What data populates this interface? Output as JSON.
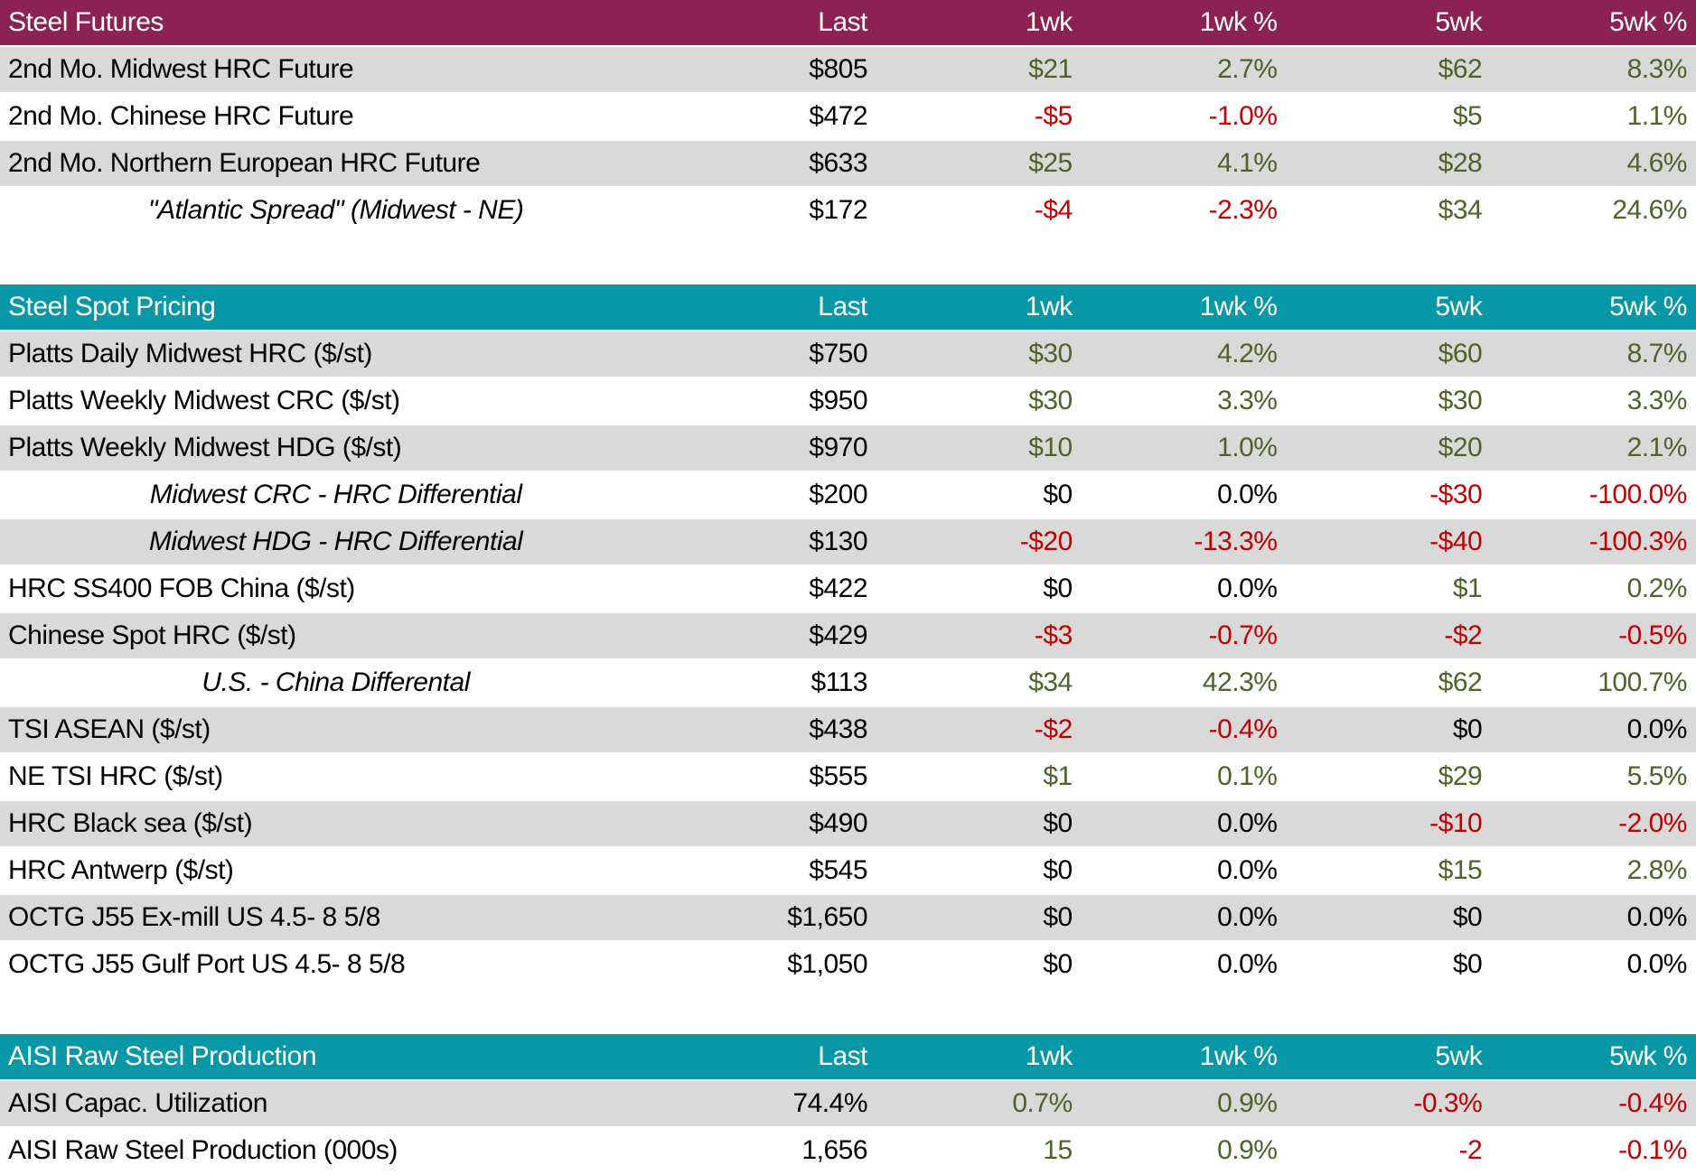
{
  "colors": {
    "maroon_header_bg": "#8b2352",
    "teal_header_bg": "#0897a6",
    "row_gray_bg": "#d9d9d9",
    "row_white_bg": "#ffffff",
    "positive_text": "#4f6228",
    "negative_text": "#c00000",
    "neutral_text": "#000000",
    "header_text": "#ffffff"
  },
  "table": {
    "columns": [
      "Last",
      "1wk",
      "1wk %",
      "5wk",
      "5wk %"
    ],
    "sections": [
      {
        "title": "Steel Futures",
        "theme": "maroon",
        "gap_after": 55,
        "rows": [
          {
            "label": "2nd Mo. Midwest HRC Future",
            "italic": false,
            "last": "$805",
            "changes": [
              {
                "text": "$21",
                "tone": "pos"
              },
              {
                "text": "2.7%",
                "tone": "pos"
              },
              {
                "text": "$62",
                "tone": "pos"
              },
              {
                "text": "8.3%",
                "tone": "pos"
              }
            ]
          },
          {
            "label": "2nd Mo. Chinese HRC Future",
            "italic": false,
            "last": "$472",
            "changes": [
              {
                "text": "-$5",
                "tone": "neg"
              },
              {
                "text": "-1.0%",
                "tone": "neg"
              },
              {
                "text": "$5",
                "tone": "pos"
              },
              {
                "text": "1.1%",
                "tone": "pos"
              }
            ]
          },
          {
            "label": "2nd Mo. Northern European HRC Future",
            "italic": false,
            "last": "$633",
            "changes": [
              {
                "text": "$25",
                "tone": "pos"
              },
              {
                "text": "4.1%",
                "tone": "pos"
              },
              {
                "text": "$28",
                "tone": "pos"
              },
              {
                "text": "4.6%",
                "tone": "pos"
              }
            ]
          },
          {
            "label": "\"Atlantic Spread\" (Midwest - NE)",
            "italic": true,
            "last": "$172",
            "changes": [
              {
                "text": "-$4",
                "tone": "neg"
              },
              {
                "text": "-2.3%",
                "tone": "neg"
              },
              {
                "text": "$34",
                "tone": "pos"
              },
              {
                "text": "24.6%",
                "tone": "pos"
              }
            ]
          }
        ]
      },
      {
        "title": "Steel Spot Pricing",
        "theme": "teal",
        "gap_after": 50,
        "rows": [
          {
            "label": "Platts Daily Midwest HRC ($/st)",
            "italic": false,
            "last": "$750",
            "changes": [
              {
                "text": "$30",
                "tone": "pos"
              },
              {
                "text": "4.2%",
                "tone": "pos"
              },
              {
                "text": "$60",
                "tone": "pos"
              },
              {
                "text": "8.7%",
                "tone": "pos"
              }
            ]
          },
          {
            "label": "Platts Weekly Midwest CRC ($/st)",
            "italic": false,
            "last": "$950",
            "changes": [
              {
                "text": "$30",
                "tone": "pos"
              },
              {
                "text": "3.3%",
                "tone": "pos"
              },
              {
                "text": "$30",
                "tone": "pos"
              },
              {
                "text": "3.3%",
                "tone": "pos"
              }
            ]
          },
          {
            "label": "Platts Weekly Midwest HDG ($/st)",
            "italic": false,
            "last": "$970",
            "changes": [
              {
                "text": "$10",
                "tone": "pos"
              },
              {
                "text": "1.0%",
                "tone": "pos"
              },
              {
                "text": "$20",
                "tone": "pos"
              },
              {
                "text": "2.1%",
                "tone": "pos"
              }
            ]
          },
          {
            "label": "Midwest CRC - HRC Differential",
            "italic": true,
            "last": "$200",
            "changes": [
              {
                "text": "$0",
                "tone": "neu"
              },
              {
                "text": "0.0%",
                "tone": "neu"
              },
              {
                "text": "-$30",
                "tone": "neg"
              },
              {
                "text": "-100.0%",
                "tone": "neg"
              }
            ]
          },
          {
            "label": "Midwest HDG - HRC Differential",
            "italic": true,
            "last": "$130",
            "changes": [
              {
                "text": "-$20",
                "tone": "neg"
              },
              {
                "text": "-13.3%",
                "tone": "neg"
              },
              {
                "text": "-$40",
                "tone": "neg"
              },
              {
                "text": "-100.3%",
                "tone": "neg"
              }
            ]
          },
          {
            "label": "HRC SS400 FOB China ($/st)",
            "italic": false,
            "last": "$422",
            "changes": [
              {
                "text": "$0",
                "tone": "neu"
              },
              {
                "text": "0.0%",
                "tone": "neu"
              },
              {
                "text": "$1",
                "tone": "pos"
              },
              {
                "text": "0.2%",
                "tone": "pos"
              }
            ]
          },
          {
            "label": "Chinese Spot HRC ($/st)",
            "italic": false,
            "last": "$429",
            "changes": [
              {
                "text": "-$3",
                "tone": "neg"
              },
              {
                "text": "-0.7%",
                "tone": "neg"
              },
              {
                "text": "-$2",
                "tone": "neg"
              },
              {
                "text": "-0.5%",
                "tone": "neg"
              }
            ]
          },
          {
            "label": "U.S. - China Differental",
            "italic": true,
            "last": "$113",
            "changes": [
              {
                "text": "$34",
                "tone": "pos"
              },
              {
                "text": "42.3%",
                "tone": "pos"
              },
              {
                "text": "$62",
                "tone": "pos"
              },
              {
                "text": "100.7%",
                "tone": "pos"
              }
            ]
          },
          {
            "label": "TSI ASEAN ($/st)",
            "italic": false,
            "last": "$438",
            "changes": [
              {
                "text": "-$2",
                "tone": "neg"
              },
              {
                "text": "-0.4%",
                "tone": "neg"
              },
              {
                "text": "$0",
                "tone": "neu"
              },
              {
                "text": "0.0%",
                "tone": "neu"
              }
            ]
          },
          {
            "label": "NE TSI HRC ($/st)",
            "italic": false,
            "last": "$555",
            "changes": [
              {
                "text": "$1",
                "tone": "pos"
              },
              {
                "text": "0.1%",
                "tone": "pos"
              },
              {
                "text": "$29",
                "tone": "pos"
              },
              {
                "text": "5.5%",
                "tone": "pos"
              }
            ]
          },
          {
            "label": "HRC Black sea ($/st)",
            "italic": false,
            "last": "$490",
            "changes": [
              {
                "text": "$0",
                "tone": "neu"
              },
              {
                "text": "0.0%",
                "tone": "neu"
              },
              {
                "text": "-$10",
                "tone": "neg"
              },
              {
                "text": "-2.0%",
                "tone": "neg"
              }
            ]
          },
          {
            "label": "HRC Antwerp ($/st)",
            "italic": false,
            "last": "$545",
            "changes": [
              {
                "text": "$0",
                "tone": "neu"
              },
              {
                "text": "0.0%",
                "tone": "neu"
              },
              {
                "text": "$15",
                "tone": "pos"
              },
              {
                "text": "2.8%",
                "tone": "pos"
              }
            ]
          },
          {
            "label": "OCTG J55 Ex-mill US 4.5- 8 5/8",
            "italic": false,
            "last": "$1,650",
            "changes": [
              {
                "text": "$0",
                "tone": "neu"
              },
              {
                "text": "0.0%",
                "tone": "neu"
              },
              {
                "text": "$0",
                "tone": "neu"
              },
              {
                "text": "0.0%",
                "tone": "neu"
              }
            ]
          },
          {
            "label": "OCTG J55 Gulf Port US 4.5- 8 5/8",
            "italic": false,
            "last": "$1,050",
            "changes": [
              {
                "text": "$0",
                "tone": "neu"
              },
              {
                "text": "0.0%",
                "tone": "neu"
              },
              {
                "text": "$0",
                "tone": "neu"
              },
              {
                "text": "0.0%",
                "tone": "neu"
              }
            ]
          }
        ]
      },
      {
        "title": "AISI Raw Steel Production",
        "theme": "teal",
        "gap_after": 0,
        "rows": [
          {
            "label": "AISI Capac. Utilization",
            "italic": false,
            "last": "74.4%",
            "changes": [
              {
                "text": "0.7%",
                "tone": "pos"
              },
              {
                "text": "0.9%",
                "tone": "pos"
              },
              {
                "text": "-0.3%",
                "tone": "neg"
              },
              {
                "text": "-0.4%",
                "tone": "neg"
              }
            ]
          },
          {
            "label": "AISI Raw Steel Production (000s)",
            "italic": false,
            "last": "1,656",
            "changes": [
              {
                "text": "15",
                "tone": "pos"
              },
              {
                "text": "0.9%",
                "tone": "pos"
              },
              {
                "text": "-2",
                "tone": "neg"
              },
              {
                "text": "-0.1%",
                "tone": "neg"
              }
            ]
          }
        ]
      }
    ]
  },
  "chart_data": [
    {
      "type": "table",
      "title": "Steel Futures",
      "columns": [
        "",
        "Last",
        "1wk",
        "1wk %",
        "5wk",
        "5wk %"
      ],
      "rows": [
        [
          "2nd Mo. Midwest HRC Future",
          "$805",
          "$21",
          "2.7%",
          "$62",
          "8.3%"
        ],
        [
          "2nd Mo. Chinese HRC Future",
          "$472",
          "-$5",
          "-1.0%",
          "$5",
          "1.1%"
        ],
        [
          "2nd Mo. Northern European HRC Future",
          "$633",
          "$25",
          "4.1%",
          "$28",
          "4.6%"
        ],
        [
          "\"Atlantic Spread\" (Midwest - NE)",
          "$172",
          "-$4",
          "-2.3%",
          "$34",
          "24.6%"
        ]
      ]
    },
    {
      "type": "table",
      "title": "Steel Spot Pricing",
      "columns": [
        "",
        "Last",
        "1wk",
        "1wk %",
        "5wk",
        "5wk %"
      ],
      "rows": [
        [
          "Platts Daily Midwest HRC ($/st)",
          "$750",
          "$30",
          "4.2%",
          "$60",
          "8.7%"
        ],
        [
          "Platts Weekly Midwest CRC ($/st)",
          "$950",
          "$30",
          "3.3%",
          "$30",
          "3.3%"
        ],
        [
          "Platts Weekly Midwest HDG ($/st)",
          "$970",
          "$10",
          "1.0%",
          "$20",
          "2.1%"
        ],
        [
          "Midwest CRC - HRC Differential",
          "$200",
          "$0",
          "0.0%",
          "-$30",
          "-100.0%"
        ],
        [
          "Midwest HDG - HRC Differential",
          "$130",
          "-$20",
          "-13.3%",
          "-$40",
          "-100.3%"
        ],
        [
          "HRC SS400 FOB China ($/st)",
          "$422",
          "$0",
          "0.0%",
          "$1",
          "0.2%"
        ],
        [
          "Chinese Spot HRC ($/st)",
          "$429",
          "-$3",
          "-0.7%",
          "-$2",
          "-0.5%"
        ],
        [
          "U.S. - China Differental",
          "$113",
          "$34",
          "42.3%",
          "$62",
          "100.7%"
        ],
        [
          "TSI ASEAN ($/st)",
          "$438",
          "-$2",
          "-0.4%",
          "$0",
          "0.0%"
        ],
        [
          "NE TSI HRC ($/st)",
          "$555",
          "$1",
          "0.1%",
          "$29",
          "5.5%"
        ],
        [
          "HRC Black sea ($/st)",
          "$490",
          "$0",
          "0.0%",
          "-$10",
          "-2.0%"
        ],
        [
          "HRC Antwerp ($/st)",
          "$545",
          "$0",
          "0.0%",
          "$15",
          "2.8%"
        ],
        [
          "OCTG J55 Ex-mill US 4.5- 8 5/8",
          "$1,650",
          "$0",
          "0.0%",
          "$0",
          "0.0%"
        ],
        [
          "OCTG J55 Gulf Port US 4.5- 8 5/8",
          "$1,050",
          "$0",
          "0.0%",
          "$0",
          "0.0%"
        ]
      ]
    },
    {
      "type": "table",
      "title": "AISI Raw Steel Production",
      "columns": [
        "",
        "Last",
        "1wk",
        "1wk %",
        "5wk",
        "5wk %"
      ],
      "rows": [
        [
          "AISI Capac. Utilization",
          "74.4%",
          "0.7%",
          "0.9%",
          "-0.3%",
          "-0.4%"
        ],
        [
          "AISI Raw Steel Production (000s)",
          "1,656",
          "15",
          "0.9%",
          "-2",
          "-0.1%"
        ]
      ]
    }
  ]
}
